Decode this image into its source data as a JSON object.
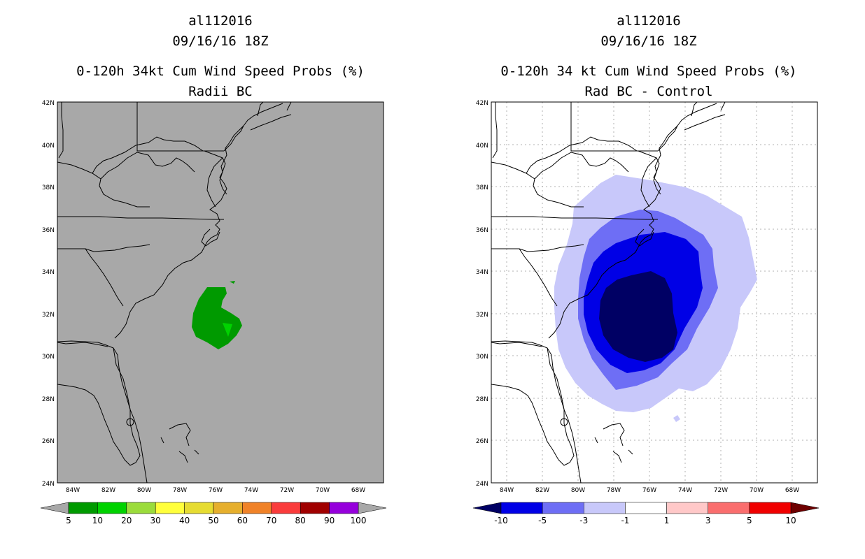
{
  "left_panel": {
    "storm_id": "al112016",
    "datetime": "09/16/16 18Z",
    "title": "0-120h 34kt Cum Wind Speed Probs (%)",
    "subtitle": "Radii BC",
    "background_color": "#a8a8a8",
    "colorbar": {
      "labels": [
        "5",
        "10",
        "20",
        "30",
        "40",
        "50",
        "60",
        "70",
        "80",
        "90",
        "100"
      ],
      "colors": [
        "#009a00",
        "#00d200",
        "#9bdc3c",
        "#ffff3c",
        "#e6dc32",
        "#e6af2d",
        "#f08228",
        "#fa3c3c",
        "#a00000",
        "#9600dc"
      ],
      "under_color": "#a8a8a8",
      "over_color": "#a8a8a8"
    }
  },
  "right_panel": {
    "storm_id": "al112016",
    "datetime": "09/16/16 18Z",
    "title": "0-120h 34 kt Cum Wind Speed Probs (%)",
    "subtitle": "Rad BC - Control",
    "colorbar": {
      "labels": [
        "-10",
        "-5",
        "-3",
        "-1",
        "1",
        "3",
        "5",
        "10"
      ],
      "colors": [
        "#0000e6",
        "#6e6ef5",
        "#c8c8fa",
        "#ffffff",
        "#ffc8c8",
        "#fa6e6e",
        "#f00000"
      ],
      "under_color": "#000064",
      "over_color": "#6e0000"
    },
    "fill_levels": [
      "#c8c8fa",
      "#6e6ef5",
      "#0000e6",
      "#000064"
    ]
  },
  "axes": {
    "lat_labels": [
      "42N",
      "40N",
      "38N",
      "36N",
      "34N",
      "32N",
      "30N",
      "28N",
      "26N",
      "24N"
    ],
    "lon_labels": [
      "84W",
      "82W",
      "80W",
      "78W",
      "76W",
      "74W",
      "72W",
      "70W",
      "68W"
    ]
  }
}
